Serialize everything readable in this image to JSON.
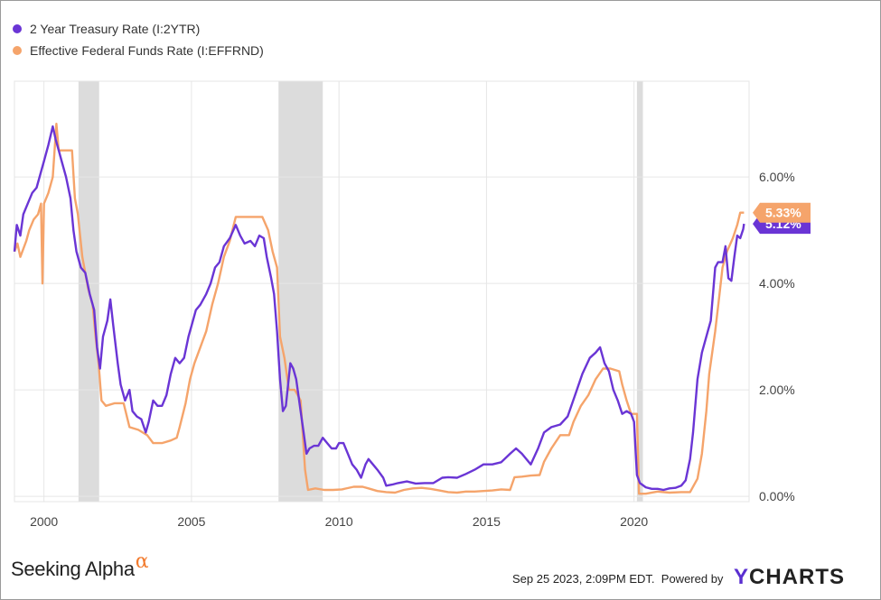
{
  "chart_data": {
    "type": "line",
    "series": [
      {
        "name": "2 Year Treasury Rate (I:2YTR)",
        "color": "#6a35d5",
        "last_label": "5.12%",
        "points": [
          [
            1999.0,
            4.6
          ],
          [
            1999.08,
            5.1
          ],
          [
            1999.2,
            4.9
          ],
          [
            1999.3,
            5.3
          ],
          [
            1999.45,
            5.5
          ],
          [
            1999.6,
            5.7
          ],
          [
            1999.75,
            5.8
          ],
          [
            1999.9,
            6.1
          ],
          [
            2000.0,
            6.3
          ],
          [
            2000.15,
            6.6
          ],
          [
            2000.3,
            6.95
          ],
          [
            2000.4,
            6.7
          ],
          [
            2000.5,
            6.5
          ],
          [
            2000.6,
            6.3
          ],
          [
            2000.75,
            6.0
          ],
          [
            2000.9,
            5.6
          ],
          [
            2001.0,
            5.0
          ],
          [
            2001.1,
            4.6
          ],
          [
            2001.25,
            4.3
          ],
          [
            2001.4,
            4.2
          ],
          [
            2001.55,
            3.8
          ],
          [
            2001.7,
            3.5
          ],
          [
            2001.8,
            2.8
          ],
          [
            2001.9,
            2.4
          ],
          [
            2002.0,
            3.0
          ],
          [
            2002.15,
            3.3
          ],
          [
            2002.25,
            3.7
          ],
          [
            2002.35,
            3.2
          ],
          [
            2002.5,
            2.5
          ],
          [
            2002.6,
            2.1
          ],
          [
            2002.75,
            1.8
          ],
          [
            2002.9,
            2.0
          ],
          [
            2003.0,
            1.6
          ],
          [
            2003.15,
            1.5
          ],
          [
            2003.3,
            1.45
          ],
          [
            2003.45,
            1.2
          ],
          [
            2003.55,
            1.4
          ],
          [
            2003.7,
            1.8
          ],
          [
            2003.85,
            1.7
          ],
          [
            2004.0,
            1.7
          ],
          [
            2004.15,
            1.9
          ],
          [
            2004.3,
            2.3
          ],
          [
            2004.45,
            2.6
          ],
          [
            2004.6,
            2.5
          ],
          [
            2004.75,
            2.6
          ],
          [
            2004.9,
            3.0
          ],
          [
            2005.0,
            3.2
          ],
          [
            2005.15,
            3.5
          ],
          [
            2005.3,
            3.6
          ],
          [
            2005.5,
            3.8
          ],
          [
            2005.65,
            4.0
          ],
          [
            2005.8,
            4.3
          ],
          [
            2005.95,
            4.4
          ],
          [
            2006.1,
            4.7
          ],
          [
            2006.3,
            4.85
          ],
          [
            2006.5,
            5.1
          ],
          [
            2006.65,
            4.9
          ],
          [
            2006.8,
            4.75
          ],
          [
            2007.0,
            4.8
          ],
          [
            2007.15,
            4.7
          ],
          [
            2007.3,
            4.9
          ],
          [
            2007.45,
            4.85
          ],
          [
            2007.55,
            4.5
          ],
          [
            2007.7,
            4.1
          ],
          [
            2007.8,
            3.8
          ],
          [
            2007.9,
            3.1
          ],
          [
            2008.0,
            2.2
          ],
          [
            2008.1,
            1.6
          ],
          [
            2008.2,
            1.7
          ],
          [
            2008.35,
            2.5
          ],
          [
            2008.45,
            2.4
          ],
          [
            2008.55,
            2.2
          ],
          [
            2008.7,
            1.6
          ],
          [
            2008.8,
            1.2
          ],
          [
            2008.9,
            0.8
          ],
          [
            2009.0,
            0.9
          ],
          [
            2009.15,
            0.95
          ],
          [
            2009.3,
            0.95
          ],
          [
            2009.45,
            1.1
          ],
          [
            2009.6,
            1.0
          ],
          [
            2009.75,
            0.9
          ],
          [
            2009.9,
            0.9
          ],
          [
            2010.0,
            1.0
          ],
          [
            2010.15,
            1.0
          ],
          [
            2010.3,
            0.8
          ],
          [
            2010.45,
            0.6
          ],
          [
            2010.6,
            0.5
          ],
          [
            2010.75,
            0.35
          ],
          [
            2010.9,
            0.6
          ],
          [
            2011.0,
            0.7
          ],
          [
            2011.15,
            0.6
          ],
          [
            2011.3,
            0.5
          ],
          [
            2011.5,
            0.35
          ],
          [
            2011.6,
            0.2
          ],
          [
            2011.8,
            0.22
          ],
          [
            2012.0,
            0.25
          ],
          [
            2012.3,
            0.28
          ],
          [
            2012.6,
            0.24
          ],
          [
            2012.9,
            0.25
          ],
          [
            2013.2,
            0.25
          ],
          [
            2013.5,
            0.35
          ],
          [
            2013.7,
            0.36
          ],
          [
            2014.0,
            0.35
          ],
          [
            2014.3,
            0.42
          ],
          [
            2014.6,
            0.5
          ],
          [
            2014.9,
            0.6
          ],
          [
            2015.2,
            0.6
          ],
          [
            2015.5,
            0.64
          ],
          [
            2015.8,
            0.8
          ],
          [
            2016.0,
            0.9
          ],
          [
            2016.2,
            0.8
          ],
          [
            2016.5,
            0.6
          ],
          [
            2016.75,
            0.9
          ],
          [
            2016.95,
            1.2
          ],
          [
            2017.2,
            1.3
          ],
          [
            2017.5,
            1.35
          ],
          [
            2017.75,
            1.5
          ],
          [
            2018.0,
            1.9
          ],
          [
            2018.25,
            2.3
          ],
          [
            2018.5,
            2.6
          ],
          [
            2018.7,
            2.7
          ],
          [
            2018.85,
            2.8
          ],
          [
            2019.0,
            2.5
          ],
          [
            2019.15,
            2.35
          ],
          [
            2019.3,
            2.0
          ],
          [
            2019.45,
            1.8
          ],
          [
            2019.6,
            1.55
          ],
          [
            2019.75,
            1.6
          ],
          [
            2019.9,
            1.55
          ],
          [
            2020.0,
            1.4
          ],
          [
            2020.1,
            0.4
          ],
          [
            2020.2,
            0.25
          ],
          [
            2020.4,
            0.17
          ],
          [
            2020.6,
            0.14
          ],
          [
            2020.8,
            0.14
          ],
          [
            2021.0,
            0.12
          ],
          [
            2021.2,
            0.15
          ],
          [
            2021.4,
            0.16
          ],
          [
            2021.6,
            0.2
          ],
          [
            2021.75,
            0.3
          ],
          [
            2021.9,
            0.7
          ],
          [
            2022.0,
            1.2
          ],
          [
            2022.15,
            2.2
          ],
          [
            2022.3,
            2.7
          ],
          [
            2022.45,
            3.0
          ],
          [
            2022.6,
            3.3
          ],
          [
            2022.75,
            4.3
          ],
          [
            2022.85,
            4.4
          ],
          [
            2023.0,
            4.4
          ],
          [
            2023.1,
            4.7
          ],
          [
            2023.2,
            4.1
          ],
          [
            2023.3,
            4.05
          ],
          [
            2023.4,
            4.5
          ],
          [
            2023.5,
            4.9
          ],
          [
            2023.6,
            4.85
          ],
          [
            2023.7,
            5.02
          ],
          [
            2023.73,
            5.12
          ]
        ]
      },
      {
        "name": "Effective Federal Funds Rate (I:EFFRND)",
        "color": "#f5a46b",
        "last_label": "5.33%",
        "points": [
          [
            1999.0,
            4.6
          ],
          [
            1999.1,
            4.75
          ],
          [
            1999.2,
            4.5
          ],
          [
            1999.4,
            4.8
          ],
          [
            1999.5,
            5.0
          ],
          [
            1999.65,
            5.2
          ],
          [
            1999.8,
            5.3
          ],
          [
            1999.9,
            5.5
          ],
          [
            1999.95,
            4.0
          ],
          [
            2000.0,
            5.5
          ],
          [
            2000.15,
            5.7
          ],
          [
            2000.3,
            6.0
          ],
          [
            2000.42,
            7.0
          ],
          [
            2000.5,
            6.5
          ],
          [
            2000.65,
            6.5
          ],
          [
            2000.8,
            6.5
          ],
          [
            2000.95,
            6.5
          ],
          [
            2001.05,
            5.6
          ],
          [
            2001.15,
            5.3
          ],
          [
            2001.3,
            4.5
          ],
          [
            2001.5,
            3.9
          ],
          [
            2001.65,
            3.6
          ],
          [
            2001.75,
            3.0
          ],
          [
            2001.85,
            2.5
          ],
          [
            2001.95,
            1.8
          ],
          [
            2002.1,
            1.7
          ],
          [
            2002.4,
            1.75
          ],
          [
            2002.7,
            1.75
          ],
          [
            2002.9,
            1.3
          ],
          [
            2003.2,
            1.25
          ],
          [
            2003.5,
            1.15
          ],
          [
            2003.7,
            1.0
          ],
          [
            2004.0,
            1.0
          ],
          [
            2004.3,
            1.05
          ],
          [
            2004.5,
            1.1
          ],
          [
            2004.6,
            1.3
          ],
          [
            2004.8,
            1.75
          ],
          [
            2004.95,
            2.2
          ],
          [
            2005.1,
            2.5
          ],
          [
            2005.3,
            2.8
          ],
          [
            2005.5,
            3.1
          ],
          [
            2005.7,
            3.6
          ],
          [
            2005.9,
            4.0
          ],
          [
            2006.1,
            4.5
          ],
          [
            2006.3,
            4.8
          ],
          [
            2006.5,
            5.25
          ],
          [
            2006.7,
            5.25
          ],
          [
            2006.9,
            5.25
          ],
          [
            2007.1,
            5.25
          ],
          [
            2007.4,
            5.25
          ],
          [
            2007.6,
            5.0
          ],
          [
            2007.75,
            4.6
          ],
          [
            2007.9,
            4.3
          ],
          [
            2008.0,
            3.0
          ],
          [
            2008.15,
            2.6
          ],
          [
            2008.3,
            2.0
          ],
          [
            2008.5,
            2.0
          ],
          [
            2008.7,
            1.8
          ],
          [
            2008.85,
            0.5
          ],
          [
            2008.95,
            0.12
          ],
          [
            2009.2,
            0.15
          ],
          [
            2009.5,
            0.12
          ],
          [
            2009.8,
            0.12
          ],
          [
            2010.1,
            0.13
          ],
          [
            2010.5,
            0.18
          ],
          [
            2010.8,
            0.18
          ],
          [
            2011.0,
            0.15
          ],
          [
            2011.3,
            0.1
          ],
          [
            2011.6,
            0.08
          ],
          [
            2011.9,
            0.07
          ],
          [
            2012.2,
            0.12
          ],
          [
            2012.5,
            0.15
          ],
          [
            2012.8,
            0.16
          ],
          [
            2013.1,
            0.14
          ],
          [
            2013.4,
            0.11
          ],
          [
            2013.7,
            0.08
          ],
          [
            2014.0,
            0.07
          ],
          [
            2014.3,
            0.09
          ],
          [
            2014.6,
            0.09
          ],
          [
            2014.9,
            0.1
          ],
          [
            2015.2,
            0.11
          ],
          [
            2015.5,
            0.13
          ],
          [
            2015.8,
            0.12
          ],
          [
            2015.95,
            0.36
          ],
          [
            2016.2,
            0.37
          ],
          [
            2016.5,
            0.39
          ],
          [
            2016.8,
            0.4
          ],
          [
            2016.95,
            0.65
          ],
          [
            2017.2,
            0.9
          ],
          [
            2017.5,
            1.15
          ],
          [
            2017.8,
            1.15
          ],
          [
            2017.95,
            1.4
          ],
          [
            2018.2,
            1.7
          ],
          [
            2018.45,
            1.9
          ],
          [
            2018.7,
            2.2
          ],
          [
            2018.95,
            2.4
          ],
          [
            2019.2,
            2.4
          ],
          [
            2019.5,
            2.35
          ],
          [
            2019.6,
            2.1
          ],
          [
            2019.75,
            1.8
          ],
          [
            2019.9,
            1.55
          ],
          [
            2020.1,
            1.55
          ],
          [
            2020.17,
            0.05
          ],
          [
            2020.4,
            0.05
          ],
          [
            2020.8,
            0.09
          ],
          [
            2021.2,
            0.07
          ],
          [
            2021.6,
            0.08
          ],
          [
            2021.9,
            0.08
          ],
          [
            2022.15,
            0.33
          ],
          [
            2022.3,
            0.8
          ],
          [
            2022.45,
            1.6
          ],
          [
            2022.55,
            2.3
          ],
          [
            2022.75,
            3.1
          ],
          [
            2022.9,
            3.8
          ],
          [
            2023.0,
            4.3
          ],
          [
            2023.15,
            4.6
          ],
          [
            2023.35,
            4.85
          ],
          [
            2023.5,
            5.1
          ],
          [
            2023.6,
            5.33
          ],
          [
            2023.73,
            5.33
          ]
        ]
      }
    ],
    "x_ticks": [
      "2000",
      "2005",
      "2010",
      "2015",
      "2020"
    ],
    "x_tick_values": [
      2000,
      2005,
      2010,
      2015,
      2020
    ],
    "y_ticks": [
      "0.00%",
      "2.00%",
      "4.00%",
      "6.00%"
    ],
    "y_tick_values": [
      0,
      2,
      4,
      6
    ],
    "xlim": [
      1999.0,
      2023.9
    ],
    "ylim": [
      -0.1,
      7.8
    ],
    "recessions": [
      [
        2001.17,
        2001.87
      ],
      [
        2007.95,
        2009.45
      ],
      [
        2020.1,
        2020.3
      ]
    ],
    "grid": true,
    "legend_position": "top-left",
    "y_axis_side": "right"
  },
  "footer": {
    "brand": "Seeking Alpha",
    "brand_mark": "α",
    "timestamp": "Sep 25 2023, 2:09PM EDT.",
    "powered_by": "Powered by",
    "ycharts_y": "Y",
    "ycharts_rest": "CHARTS"
  }
}
